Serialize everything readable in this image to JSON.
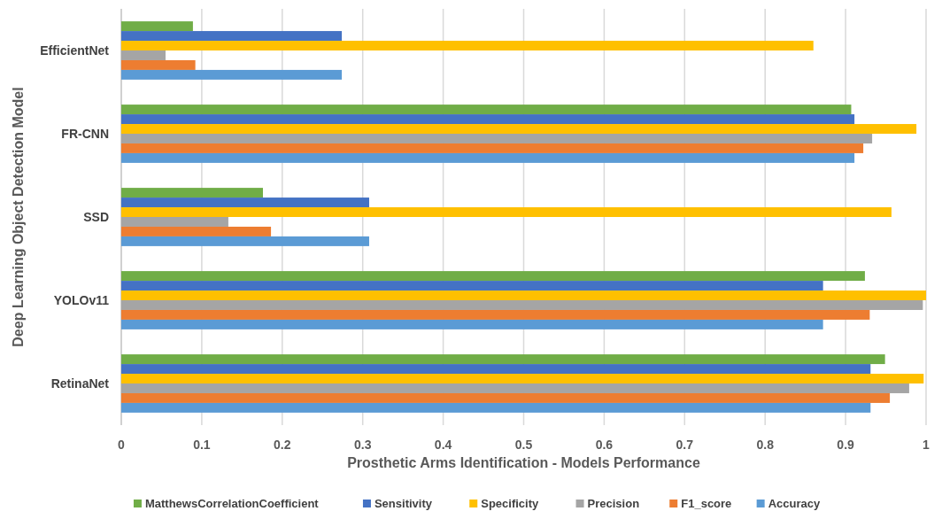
{
  "chart_data": {
    "type": "bar",
    "orientation": "horizontal",
    "xlabel": "Prosthetic Arms Identification - Models Performance",
    "ylabel": "Deep Learning Object Detection Model",
    "categories": [
      "EfficientNet",
      "FR-CNN",
      "SSD",
      "YOLOv11",
      "RetinaNet"
    ],
    "series": [
      {
        "name": "MatthewsCorrelationCoefficient",
        "color": "#70ad47",
        "values": [
          0.089,
          0.907,
          0.176,
          0.924,
          0.949
        ]
      },
      {
        "name": "Sensitivity",
        "color": "#4472c4",
        "values": [
          0.274,
          0.911,
          0.308,
          0.872,
          0.931
        ]
      },
      {
        "name": "Specificity",
        "color": "#ffc000",
        "values": [
          0.86,
          0.988,
          0.957,
          1.0,
          0.997
        ]
      },
      {
        "name": "Precision",
        "color": "#a5a5a5",
        "values": [
          0.055,
          0.933,
          0.133,
          0.996,
          0.979
        ]
      },
      {
        "name": "F1_score",
        "color": "#ed7d31",
        "values": [
          0.092,
          0.922,
          0.186,
          0.93,
          0.955
        ]
      },
      {
        "name": "Accuracy",
        "color": "#5b9bd5",
        "values": [
          0.274,
          0.911,
          0.308,
          0.872,
          0.931
        ]
      }
    ],
    "xlim": [
      0,
      1
    ],
    "xticks": [
      0,
      0.1,
      0.2,
      0.3,
      0.4,
      0.5,
      0.6,
      0.7,
      0.8,
      0.9,
      1
    ],
    "grid": "x",
    "legend": "bottom"
  }
}
